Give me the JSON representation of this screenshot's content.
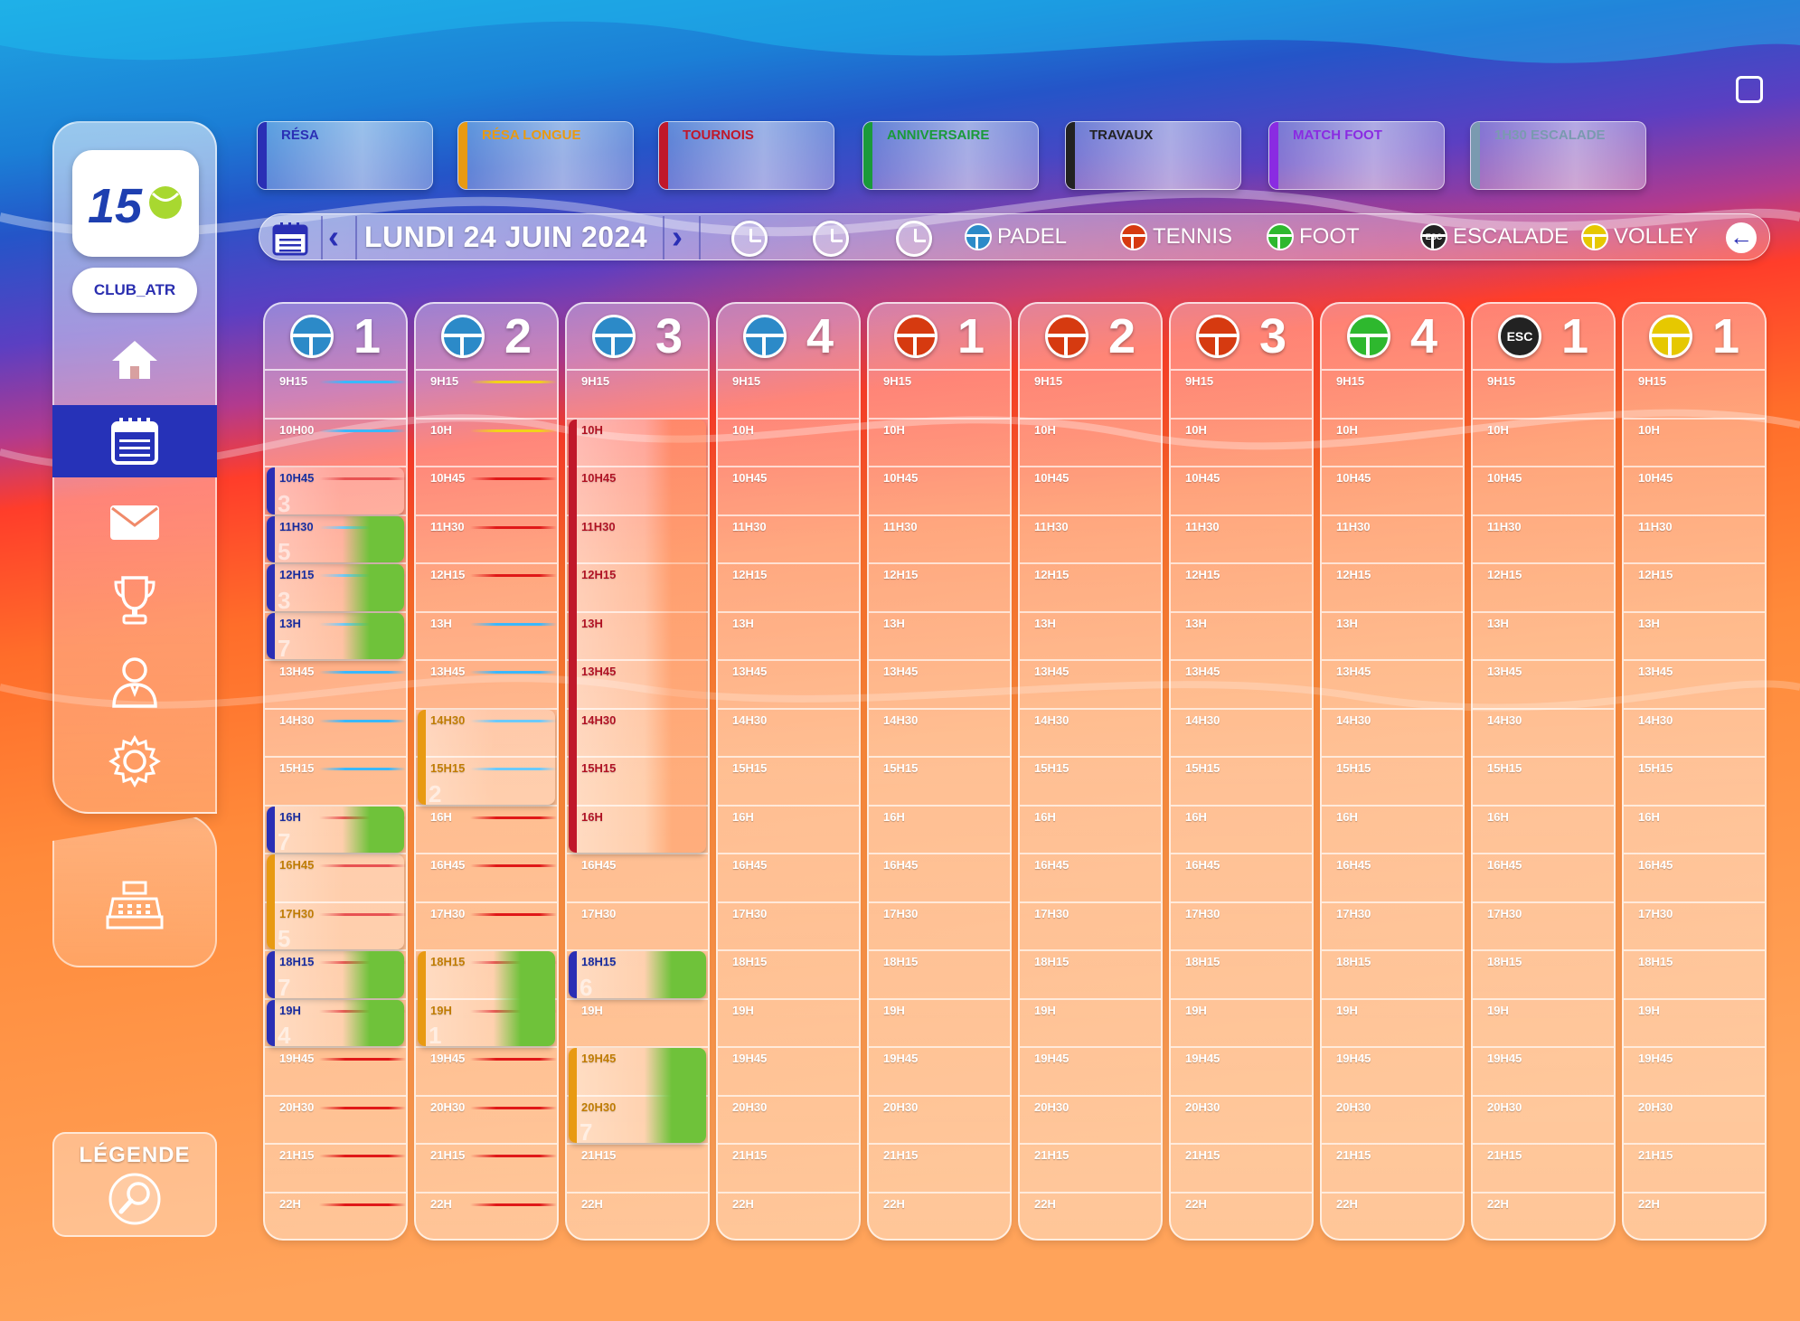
{
  "sidebar": {
    "logo_text": "15",
    "club_name": "CLUB_ATR",
    "nav": [
      "home-icon",
      "calendar-icon",
      "mail-icon",
      "trophy-icon",
      "user-icon",
      "gear-icon",
      "cash-register-icon"
    ],
    "legend_label": "LÉGENDE"
  },
  "categories": [
    {
      "label": "RÉSA",
      "color": "#2a2fb5"
    },
    {
      "label": "RÉSA LONGUE",
      "color": "#e89a12"
    },
    {
      "label": "TOURNOIS",
      "color": "#c0182a"
    },
    {
      "label": "ANNIVERSAIRE",
      "color": "#1a9a3a"
    },
    {
      "label": "TRAVAUX",
      "color": "#222222"
    },
    {
      "label": "MATCH FOOT",
      "color": "#8a2be2"
    },
    {
      "label": "1H30 ESCALADE",
      "color": "#7a9ab0"
    }
  ],
  "datebar": {
    "date": "LUNDI 24 JUIN 2024",
    "sports": [
      {
        "name": "PADEL",
        "color": "#2c8ac8"
      },
      {
        "name": "TENNIS",
        "color": "#d63a10"
      },
      {
        "name": "FOOT",
        "color": "#2eb82e"
      },
      {
        "name": "ESCALADE",
        "color": "#222222"
      },
      {
        "name": "VOLLEY",
        "color": "#e6c800"
      }
    ],
    "esc_label": "ESC"
  },
  "columns": [
    {
      "sport": "padel",
      "number": "1",
      "color": "#2c8ac8",
      "times": [
        "9H15",
        "10H00",
        "10H45",
        "11H30",
        "12H15",
        "13H",
        "13H45",
        "14H30",
        "15H15",
        "16H",
        "16H45",
        "17H30",
        "18H15",
        "19H",
        "19H45",
        "20H30",
        "21H15",
        "22H"
      ],
      "lines": [
        "#3ab8ff",
        "#3ab8ff",
        "#e01818",
        "#3ab8ff",
        "#3ab8ff",
        "#3ab8ff",
        "#3ab8ff",
        "#3ab8ff",
        "#3ab8ff",
        "#e01818",
        "#e01818",
        "#e01818",
        "#e01818",
        "#e01818",
        "#e01818",
        "#e01818",
        "#e01818",
        "#e01818"
      ]
    },
    {
      "sport": "padel",
      "number": "2",
      "color": "#2c8ac8",
      "times": [
        "9H15",
        "10H",
        "10H45",
        "11H30",
        "12H15",
        "13H",
        "13H45",
        "14H30",
        "15H15",
        "16H",
        "16H45",
        "17H30",
        "18H15",
        "19H",
        "19H45",
        "20H30",
        "21H15",
        "22H"
      ],
      "lines": [
        "#f2d21a",
        "#f2d21a",
        "#e01818",
        "#e01818",
        "#e01818",
        "#3ab8ff",
        "#3ab8ff",
        "#3ab8ff",
        "#3ab8ff",
        "#e01818",
        "#e01818",
        "#e01818",
        "#e01818",
        "#e01818",
        "#e01818",
        "#e01818",
        "#e01818",
        "#e01818"
      ]
    },
    {
      "sport": "padel",
      "number": "3",
      "color": "#2c8ac8",
      "times": [
        "9H15",
        "10H",
        "10H45",
        "11H30",
        "12H15",
        "13H",
        "13H45",
        "14H30",
        "15H15",
        "16H",
        "16H45",
        "17H30",
        "18H15",
        "19H",
        "19H45",
        "20H30",
        "21H15",
        "22H"
      ],
      "lines": []
    },
    {
      "sport": "padel",
      "number": "4",
      "color": "#2c8ac8",
      "times": [
        "9H15",
        "10H",
        "10H45",
        "11H30",
        "12H15",
        "13H",
        "13H45",
        "14H30",
        "15H15",
        "16H",
        "16H45",
        "17H30",
        "18H15",
        "19H",
        "19H45",
        "20H30",
        "21H15",
        "22H"
      ],
      "lines": []
    },
    {
      "sport": "tennis",
      "number": "1",
      "color": "#d63a10",
      "times": [
        "9H15",
        "10H",
        "10H45",
        "11H30",
        "12H15",
        "13H",
        "13H45",
        "14H30",
        "15H15",
        "16H",
        "16H45",
        "17H30",
        "18H15",
        "19H",
        "19H45",
        "20H30",
        "21H15",
        "22H"
      ],
      "lines": []
    },
    {
      "sport": "tennis",
      "number": "2",
      "color": "#d63a10",
      "times": [
        "9H15",
        "10H",
        "10H45",
        "11H30",
        "12H15",
        "13H",
        "13H45",
        "14H30",
        "15H15",
        "16H",
        "16H45",
        "17H30",
        "18H15",
        "19H",
        "19H45",
        "20H30",
        "21H15",
        "22H"
      ],
      "lines": []
    },
    {
      "sport": "tennis",
      "number": "3",
      "color": "#d63a10",
      "times": [
        "9H15",
        "10H",
        "10H45",
        "11H30",
        "12H15",
        "13H",
        "13H45",
        "14H30",
        "15H15",
        "16H",
        "16H45",
        "17H30",
        "18H15",
        "19H",
        "19H45",
        "20H30",
        "21H15",
        "22H"
      ],
      "lines": []
    },
    {
      "sport": "foot",
      "number": "4",
      "color": "#2eb82e",
      "times": [
        "9H15",
        "10H",
        "10H45",
        "11H30",
        "12H15",
        "13H",
        "13H45",
        "14H30",
        "15H15",
        "16H",
        "16H45",
        "17H30",
        "18H15",
        "19H",
        "19H45",
        "20H30",
        "21H15",
        "22H"
      ],
      "lines": []
    },
    {
      "sport": "escalade",
      "number": "1",
      "color": "#222222",
      "times": [
        "9H15",
        "10H",
        "10H45",
        "11H30",
        "12H15",
        "13H",
        "13H45",
        "14H30",
        "15H15",
        "16H",
        "16H45",
        "17H30",
        "18H15",
        "19H",
        "19H45",
        "20H30",
        "21H15",
        "22H"
      ],
      "lines": []
    },
    {
      "sport": "volley",
      "number": "1",
      "color": "#e6c800",
      "times": [
        "9H15",
        "10H",
        "10H45",
        "11H30",
        "12H15",
        "13H",
        "13H45",
        "14H30",
        "15H15",
        "16H",
        "16H45",
        "17H30",
        "18H15",
        "19H",
        "19H45",
        "20H30",
        "21H15",
        "22H"
      ],
      "lines": []
    }
  ],
  "bookings": [
    {
      "col": 0,
      "start": 2,
      "span": 1,
      "time": "10H45",
      "num": "3",
      "bar": "#2a2fb5",
      "text": "#1a2a9a",
      "tail": "rgba(255,255,255,0.25)"
    },
    {
      "col": 0,
      "start": 3,
      "span": 1,
      "time": "11H30",
      "num": "5",
      "bar": "#2a2fb5",
      "text": "#1a2a9a",
      "tail": "#6fc23a"
    },
    {
      "col": 0,
      "start": 4,
      "span": 1,
      "time": "12H15",
      "num": "3",
      "bar": "#2a2fb5",
      "text": "#1a2a9a",
      "tail": "#6fc23a"
    },
    {
      "col": 0,
      "start": 5,
      "span": 1,
      "time": "13H",
      "num": "7",
      "bar": "#2a2fb5",
      "text": "#1a2a9a",
      "tail": "#6fc23a"
    },
    {
      "col": 0,
      "start": 9,
      "span": 1,
      "time": "16H",
      "num": "7",
      "bar": "#2a2fb5",
      "text": "#1a2a9a",
      "tail": "#6fc23a"
    },
    {
      "col": 0,
      "start": 10,
      "span": 2,
      "time": "16H45",
      "time2": "17H30",
      "num": "5",
      "bar": "#e89a12",
      "text": "#c07a00",
      "tail": "rgba(255,255,255,0.25)"
    },
    {
      "col": 0,
      "start": 12,
      "span": 1,
      "time": "18H15",
      "num": "7",
      "bar": "#2a2fb5",
      "text": "#1a2a9a",
      "tail": "#6fc23a"
    },
    {
      "col": 0,
      "start": 13,
      "span": 1,
      "time": "19H",
      "num": "4",
      "bar": "#2a2fb5",
      "text": "#1a2a9a",
      "tail": "#6fc23a"
    },
    {
      "col": 1,
      "start": 7,
      "span": 2,
      "time": "14H30",
      "time2": "15H15",
      "num": "2",
      "bar": "#e89a12",
      "text": "#c07a00",
      "tail": "rgba(255,255,255,0.25)"
    },
    {
      "col": 1,
      "start": 12,
      "span": 2,
      "time": "18H15",
      "time2": "19H",
      "num": "1",
      "bar": "#e89a12",
      "text": "#c07a00",
      "tail": "#6fc23a"
    },
    {
      "col": 2,
      "start": 1,
      "span": 9,
      "time": "10H",
      "times": [
        "10H",
        "10H45",
        "11H30",
        "12H15",
        "13H",
        "13H45",
        "14H30",
        "15H15",
        "16H"
      ],
      "num": "",
      "bar": "#c0182a",
      "text": "#b01020",
      "tail": "rgba(255,140,80,0.35)"
    },
    {
      "col": 2,
      "start": 12,
      "span": 1,
      "time": "18H15",
      "num": "6",
      "bar": "#2a2fb5",
      "text": "#1a2a9a",
      "tail": "#6fc23a"
    },
    {
      "col": 2,
      "start": 14,
      "span": 2,
      "time": "19H45",
      "time2": "20H30",
      "num": "7",
      "bar": "#e89a12",
      "text": "#c07a00",
      "tail": "#6fc23a"
    }
  ]
}
